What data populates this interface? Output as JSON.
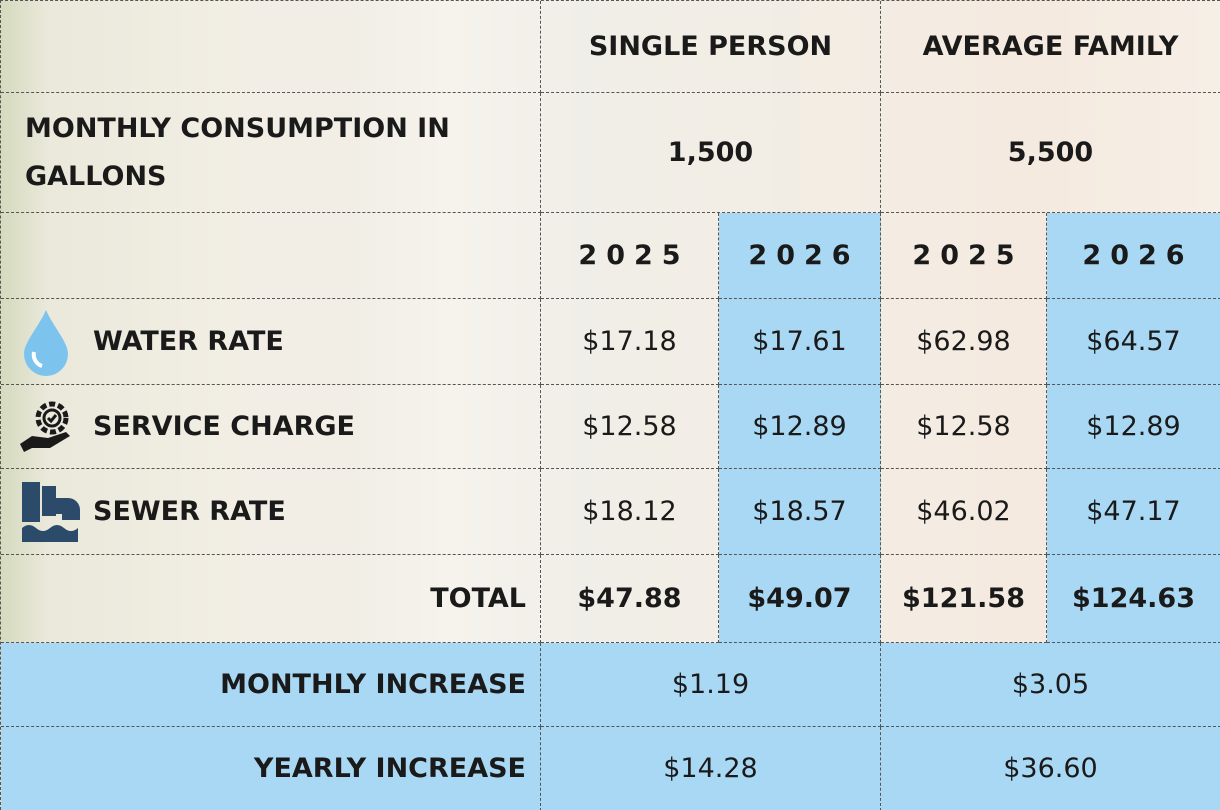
{
  "table": {
    "header": [
      "SINGLE PERSON",
      "AVERAGE FAMILY"
    ],
    "consumption": {
      "label": "MONTHLY CONSUMPTION IN GALLONS",
      "values": [
        "1,500",
        "5,500"
      ]
    },
    "years": [
      "2025",
      "2026",
      "2025",
      "2026"
    ],
    "rows": [
      {
        "label": "WATER RATE",
        "values": [
          "$17.18",
          "$17.61",
          "$62.98",
          "$64.57"
        ]
      },
      {
        "label": "SERVICE CHARGE",
        "values": [
          "$12.58",
          "$12.89",
          "$12.58",
          "$12.89"
        ]
      },
      {
        "label": "SEWER RATE",
        "values": [
          "$18.12",
          "$18.57",
          "$46.02",
          "$47.17"
        ]
      }
    ],
    "total": {
      "label": "TOTAL",
      "values": [
        "$47.88",
        "$49.07",
        "$121.58",
        "$124.63"
      ]
    },
    "increases": [
      {
        "label": "MONTHLY INCREASE",
        "values": [
          "$1.19",
          "$3.05"
        ]
      },
      {
        "label": "YEARLY INCREASE",
        "values": [
          "$14.28",
          "$36.60"
        ]
      }
    ]
  }
}
